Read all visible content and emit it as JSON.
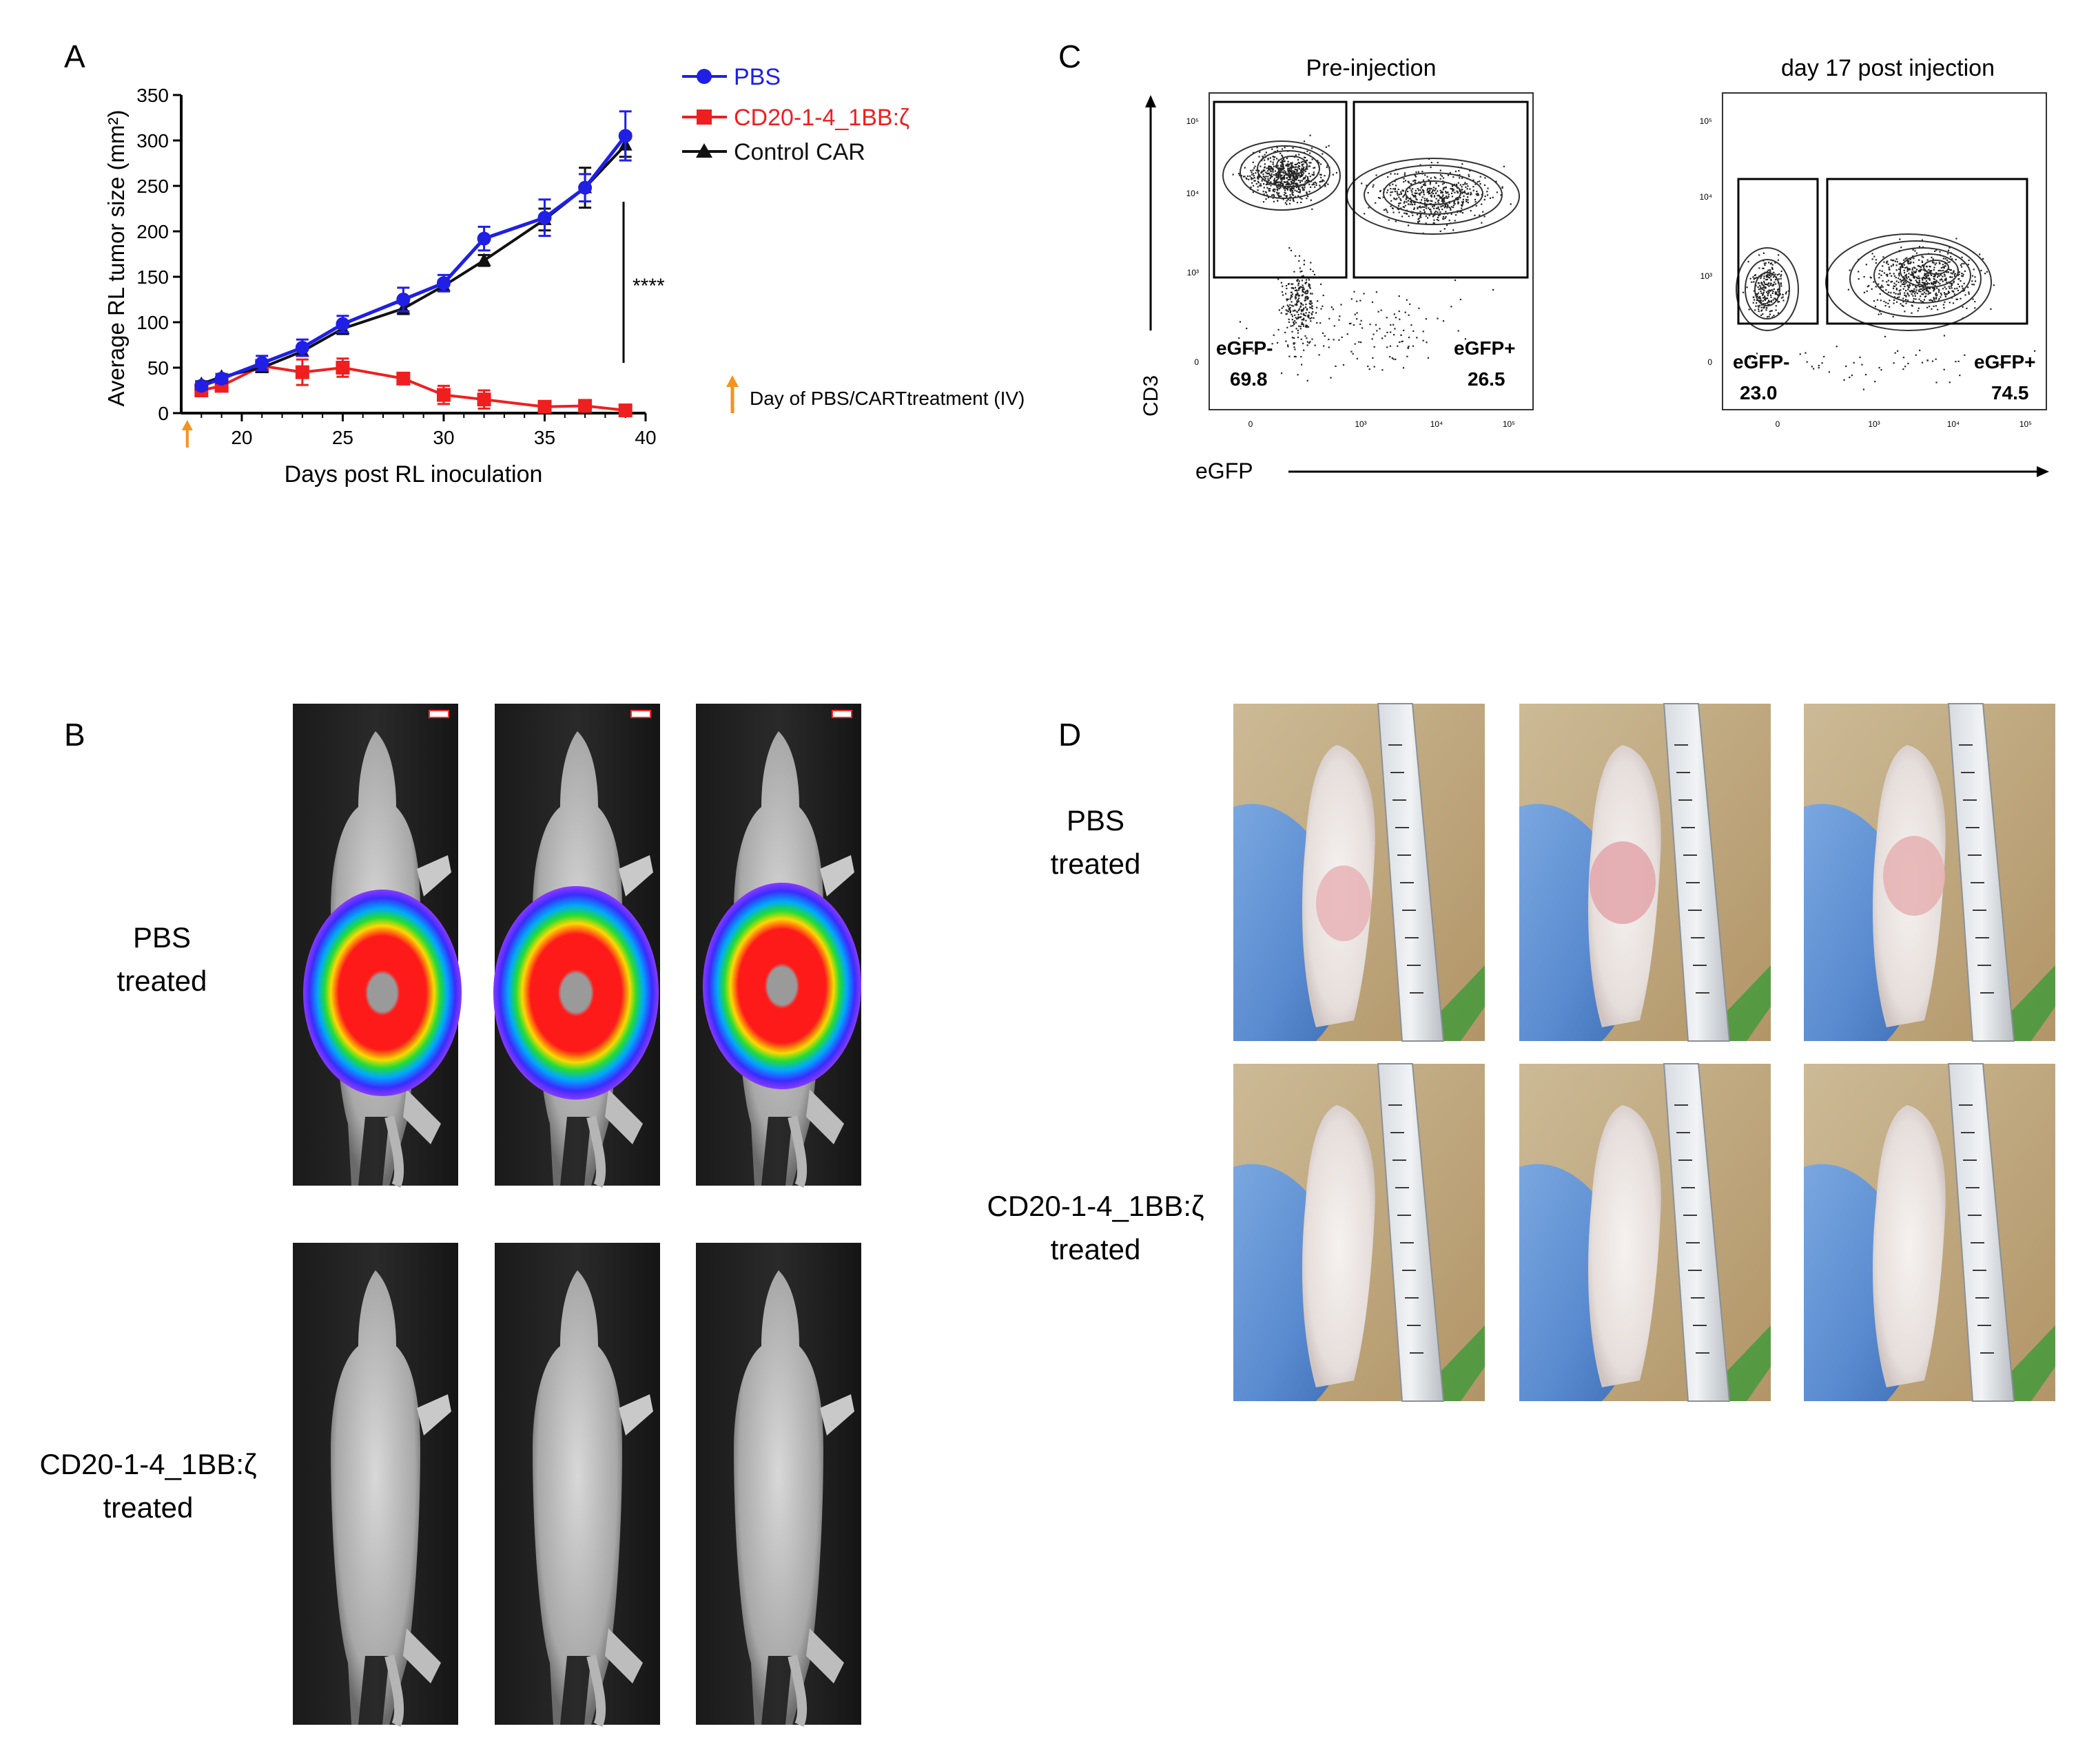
{
  "panels": {
    "a": "A",
    "b": "B",
    "c": "C",
    "d": "D"
  },
  "colors": {
    "pbs": "#1f1fe6",
    "cart": "#ef1f1f",
    "control": "#111111",
    "arrow": "#f7921e"
  },
  "chart_data": [
    {
      "type": "line",
      "title": "",
      "xlabel": "Days post RL inoculation",
      "ylabel": "Average RL tumor size (mm²)",
      "xlim": [
        17,
        40
      ],
      "ylim": [
        0,
        350
      ],
      "xticks": [
        20,
        25,
        30,
        35,
        40
      ],
      "yticks": [
        0,
        50,
        100,
        150,
        200,
        250,
        300,
        350
      ],
      "series": [
        {
          "name": "PBS",
          "color": "#1f1fe6",
          "marker": "circle",
          "x": [
            18,
            19,
            21,
            23,
            25,
            28,
            30,
            32,
            35,
            37,
            39
          ],
          "values": [
            30,
            38,
            55,
            72,
            98,
            125,
            143,
            192,
            215,
            248,
            305
          ],
          "errors": [
            4,
            5,
            8,
            9,
            9,
            13,
            9,
            13,
            20,
            15,
            27
          ]
        },
        {
          "name": "CD20-1-4_1BB:ζ",
          "color": "#ef1f1f",
          "marker": "square",
          "x": [
            18,
            19,
            21,
            23,
            25,
            28,
            30,
            32,
            35,
            37,
            39
          ],
          "values": [
            25,
            30,
            52,
            45,
            50,
            38,
            20,
            15,
            7,
            8,
            3
          ],
          "errors": [
            5,
            6,
            6,
            14,
            10,
            6,
            10,
            10,
            3,
            3,
            2
          ]
        },
        {
          "name": "Control CAR",
          "color": "#111111",
          "marker": "triangle",
          "x": [
            18,
            19,
            21,
            23,
            25,
            28,
            30,
            32,
            35,
            37,
            39
          ],
          "values": [
            32,
            40,
            50,
            68,
            93,
            115,
            140,
            168,
            213,
            248,
            295
          ],
          "errors": [
            3,
            3,
            4,
            5,
            6,
            6,
            6,
            6,
            12,
            22,
            13
          ]
        }
      ],
      "significance": "****",
      "annotation": "Day of PBS/CARTtreatment (IV)",
      "treatment_day": 17.3
    },
    {
      "type": "scatter",
      "title": "Pre-injection",
      "xlabel": "eGFP",
      "ylabel": "CD3",
      "gates": [
        {
          "name": "eGFP-",
          "value": "69.8"
        },
        {
          "name": "eGFP+",
          "value": "26.5"
        }
      ]
    },
    {
      "type": "scatter",
      "title": "day 17 post injection",
      "xlabel": "eGFP",
      "ylabel": "CD3",
      "gates": [
        {
          "name": "eGFP-",
          "value": "23.0"
        },
        {
          "name": "eGFP+",
          "value": "74.5"
        }
      ]
    }
  ],
  "flow_axis": {
    "tick_0": "0",
    "tick_3": "10³",
    "tick_4": "10⁴",
    "tick_5": "10⁵"
  },
  "groups": {
    "b_pbs": [
      "PBS",
      "treated"
    ],
    "b_cart": [
      "CD20-1-4_1BB:ζ",
      "treated"
    ],
    "d_pbs": [
      "PBS",
      "treated"
    ],
    "d_cart": [
      "CD20-1-4_1BB:ζ",
      "treated"
    ]
  }
}
